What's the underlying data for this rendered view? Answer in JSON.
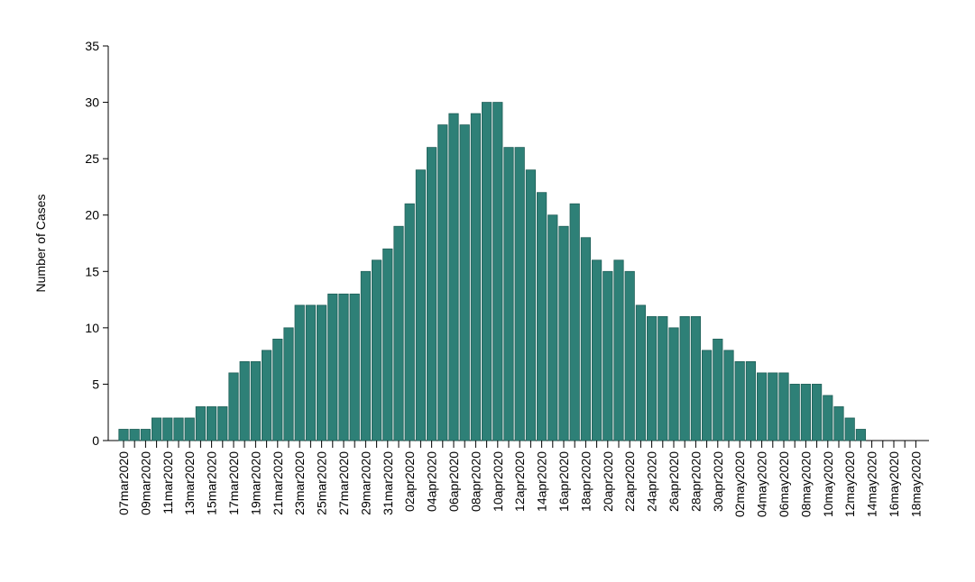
{
  "chart_data": {
    "type": "bar",
    "y_label": "Number of Cases",
    "categories": [
      "07mar2020",
      null,
      "09mar2020",
      null,
      "11mar2020",
      null,
      "13mar2020",
      null,
      "15mar2020",
      null,
      "17mar2020",
      null,
      "19mar2020",
      null,
      "21mar2020",
      null,
      "23mar2020",
      null,
      "25mar2020",
      null,
      "27mar2020",
      null,
      "29mar2020",
      null,
      "31mar2020",
      null,
      "02apr2020",
      null,
      "04apr2020",
      null,
      "06apr2020",
      null,
      "08apr2020",
      null,
      "10apr2020",
      null,
      "12apr2020",
      null,
      "14apr2020",
      null,
      "16apr2020",
      null,
      "18apr2020",
      null,
      "20apr2020",
      null,
      "22apr2020",
      null,
      "24apr2020",
      null,
      "26apr2020",
      null,
      "28apr2020",
      null,
      "30apr2020",
      null,
      "02may2020",
      null,
      "04may2020",
      null,
      "06may2020",
      null,
      "08may2020",
      null,
      "10may2020",
      null,
      "12may2020",
      null,
      "14may2020",
      null,
      "16may2020",
      null,
      "18may2020"
    ],
    "values": [
      1,
      1,
      1,
      2,
      2,
      2,
      2,
      3,
      3,
      3,
      6,
      7,
      7,
      8,
      9,
      10,
      12,
      12,
      12,
      13,
      13,
      13,
      15,
      16,
      17,
      19,
      21,
      24,
      26,
      28,
      29,
      28,
      29,
      30,
      30,
      26,
      26,
      24,
      22,
      20,
      19,
      21,
      18,
      16,
      15,
      16,
      15,
      12,
      11,
      11,
      10,
      11,
      11,
      8,
      9,
      8,
      7,
      7,
      6,
      6,
      6,
      5,
      5,
      5,
      4,
      3,
      2,
      1,
      0,
      0,
      0,
      0,
      0
    ],
    "color": "#2e8077",
    "ylim": [
      0,
      35
    ],
    "yticks": [
      0,
      5,
      10,
      15,
      20,
      25,
      30,
      35
    ]
  }
}
